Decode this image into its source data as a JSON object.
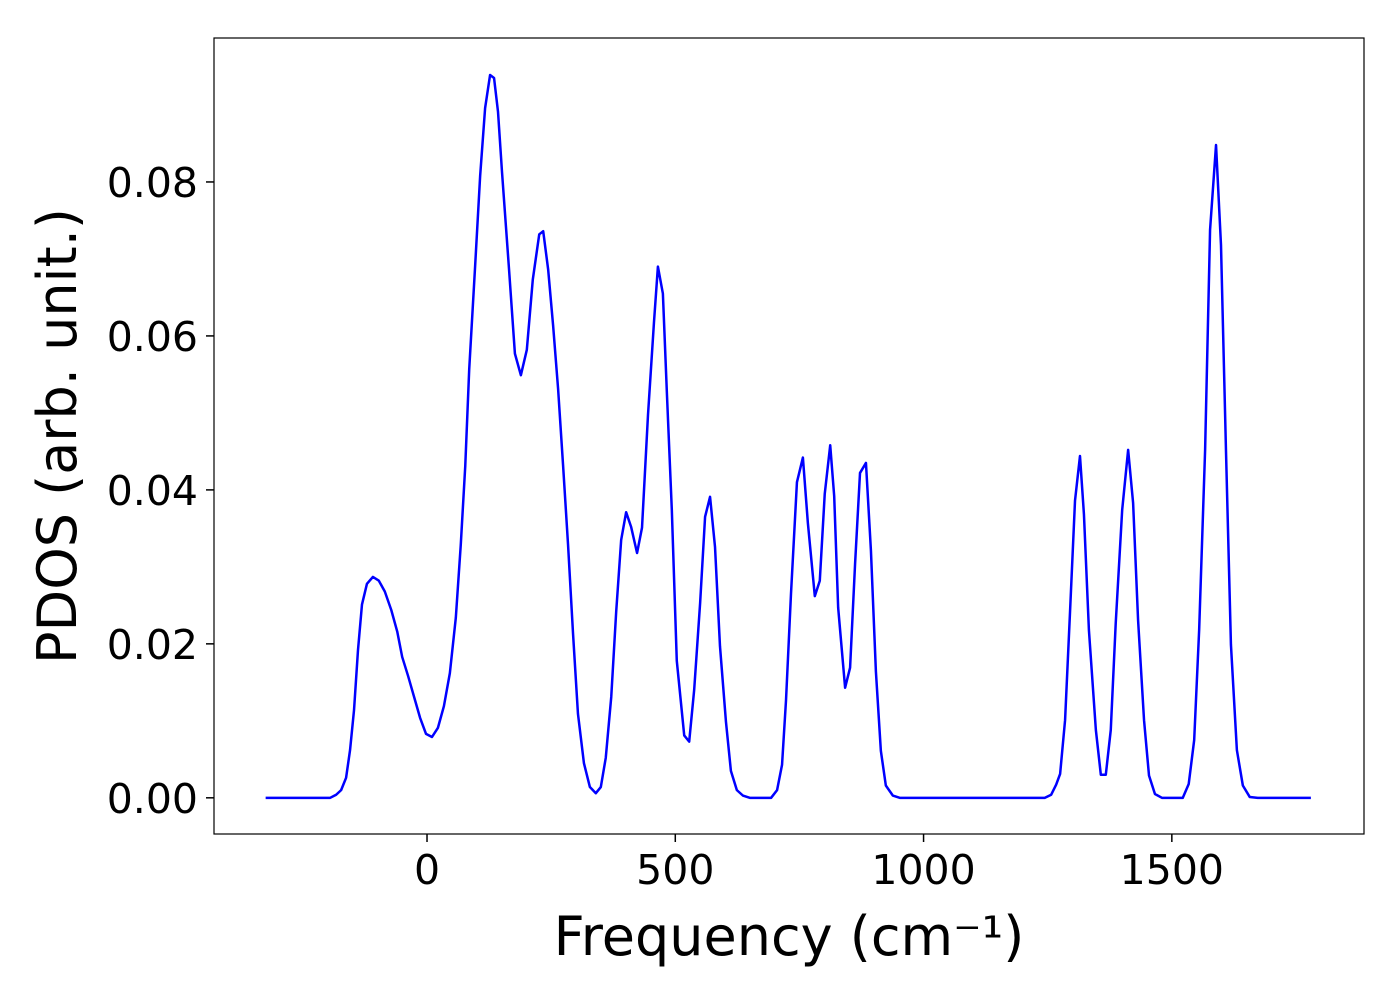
{
  "chart_data": {
    "type": "line",
    "x_label": "Frequency (cm⁻¹)",
    "y_label": "PDOS (arb. unit.)",
    "color": "#0000ff",
    "x": [
      -325,
      -195,
      -183,
      -173,
      -163,
      -155,
      -147,
      -139,
      -131,
      -121,
      -109,
      -97,
      -85,
      -72,
      -60,
      -50,
      -38,
      -26,
      -14,
      -2,
      10,
      22,
      34,
      46,
      58,
      68,
      77,
      85,
      97,
      107,
      117,
      127,
      135,
      143,
      151,
      165,
      177,
      189,
      201,
      213,
      226,
      234,
      244,
      254,
      264,
      274,
      284,
      294,
      304,
      316,
      328,
      340,
      350,
      360,
      371,
      381,
      391,
      401,
      411,
      423,
      433,
      445,
      457,
      465,
      475,
      483,
      493,
      503,
      518,
      528,
      538,
      550,
      560,
      570,
      580,
      590,
      602,
      612,
      624,
      636,
      650,
      693,
      705,
      715,
      723,
      733,
      745,
      757,
      767,
      781,
      791,
      801,
      812,
      820,
      828,
      842,
      852,
      862,
      872,
      884,
      894,
      904,
      914,
      924,
      938,
      952,
      1244,
      1257,
      1267,
      1275,
      1285,
      1295,
      1305,
      1315,
      1323,
      1333,
      1347,
      1357,
      1367,
      1377,
      1387,
      1400,
      1412,
      1422,
      1432,
      1444,
      1454,
      1466,
      1480,
      1522,
      1534,
      1545,
      1555,
      1567,
      1577,
      1589,
      1599,
      1609,
      1619,
      1631,
      1643,
      1657,
      1673,
      1780
    ],
    "values": [
      0,
      0,
      0.0004,
      0.001,
      0.0026,
      0.0062,
      0.0114,
      0.0192,
      0.0251,
      0.0278,
      0.0287,
      0.0282,
      0.0268,
      0.0244,
      0.0216,
      0.0183,
      0.0158,
      0.0131,
      0.0104,
      0.0083,
      0.0079,
      0.0091,
      0.0119,
      0.0162,
      0.0234,
      0.0329,
      0.0431,
      0.0557,
      0.0692,
      0.0808,
      0.0896,
      0.0939,
      0.0935,
      0.0891,
      0.0813,
      0.0688,
      0.0577,
      0.0549,
      0.0582,
      0.0673,
      0.0732,
      0.0736,
      0.0686,
      0.0613,
      0.0531,
      0.0432,
      0.0329,
      0.0214,
      0.0109,
      0.0045,
      0.0014,
      0.0006,
      0.0014,
      0.0052,
      0.0131,
      0.0242,
      0.0335,
      0.0371,
      0.0352,
      0.0318,
      0.0351,
      0.0497,
      0.0617,
      0.069,
      0.0655,
      0.0527,
      0.0374,
      0.0178,
      0.0081,
      0.0073,
      0.014,
      0.0253,
      0.0365,
      0.0391,
      0.0326,
      0.0197,
      0.0099,
      0.0035,
      0.001,
      0.0003,
      0,
      0,
      0.001,
      0.0043,
      0.0127,
      0.0265,
      0.041,
      0.0442,
      0.0357,
      0.0262,
      0.0282,
      0.0395,
      0.0458,
      0.0392,
      0.0247,
      0.0143,
      0.0169,
      0.0303,
      0.0422,
      0.0435,
      0.0321,
      0.0164,
      0.0061,
      0.0016,
      0.0003,
      0,
      0,
      0.0004,
      0.0017,
      0.0031,
      0.0101,
      0.0242,
      0.0386,
      0.0444,
      0.0368,
      0.0218,
      0.0088,
      0.003,
      0.003,
      0.0088,
      0.0227,
      0.0374,
      0.0452,
      0.0383,
      0.0231,
      0.0101,
      0.0029,
      0.0005,
      0,
      0,
      0.0018,
      0.0075,
      0.0218,
      0.0452,
      0.0738,
      0.0848,
      0.0718,
      0.0452,
      0.0199,
      0.0062,
      0.0016,
      0.0001,
      0,
      0
    ],
    "xlim": [
      -429,
      1887
    ],
    "ylim": [
      -0.0047,
      0.0987
    ],
    "xticks": [
      0,
      500,
      1000,
      1500
    ],
    "yticks": [
      {
        "value": 0,
        "label": "0.00"
      },
      0.02,
      0.04,
      0.06,
      0.08
    ]
  }
}
